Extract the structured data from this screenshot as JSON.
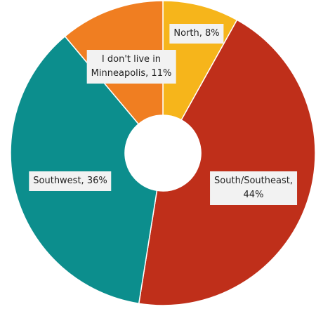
{
  "chart_data": {
    "type": "pie",
    "donut": true,
    "start_angle_deg": 0,
    "direction": "clockwise",
    "title": "",
    "legend": "none",
    "slices": [
      {
        "label": "North, 8%",
        "value": 8,
        "color": "#f6b51b"
      },
      {
        "label": "South/Southeast,\n44%",
        "value": 44,
        "color": "#bf2f1a"
      },
      {
        "label": "Southwest, 36%",
        "value": 36,
        "color": "#0c8e8d"
      },
      {
        "label": "I don't live in\nMinneapolis, 11%",
        "value": 11,
        "color": "#f07e21"
      }
    ]
  }
}
